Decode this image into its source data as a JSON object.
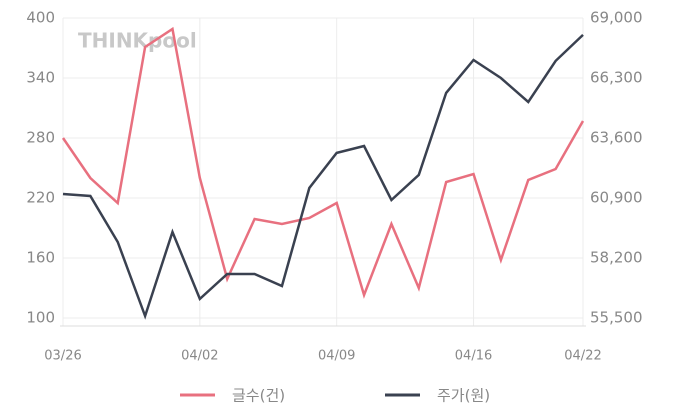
{
  "chart_data": {
    "type": "line",
    "watermark": "THINKpool",
    "categories": [
      "03/26",
      null,
      null,
      null,
      null,
      "04/02",
      null,
      null,
      null,
      null,
      "04/09",
      null,
      null,
      null,
      null,
      "04/16",
      null,
      null,
      null,
      "04/22"
    ],
    "series": [
      {
        "name": "글수(건)",
        "color": "#e8707f",
        "axis": "y",
        "values": [
          280,
          240,
          215,
          371,
          389,
          240,
          139,
          199,
          194,
          200,
          215,
          123,
          194,
          130,
          236,
          244,
          158,
          238,
          249,
          297
        ]
      },
      {
        "name": "주가(원)",
        "color": "#3a4150",
        "axis": "y2",
        "values": [
          61080,
          60990,
          58920,
          55590,
          59370,
          56360,
          57480,
          57480,
          56940,
          61350,
          62930,
          63240,
          60810,
          61940,
          65630,
          67110,
          66300,
          65220,
          67070,
          68240
        ]
      }
    ],
    "ylim": [
      100,
      400
    ],
    "yticks": [
      100,
      160,
      220,
      280,
      340,
      400
    ],
    "y2lim": [
      55500,
      69000
    ],
    "y2ticks": [
      {
        "value": 55500,
        "label": "55,500"
      },
      {
        "value": 58200,
        "label": "58,200"
      },
      {
        "value": 60900,
        "label": "60,900"
      },
      {
        "value": 63600,
        "label": "63,600"
      },
      {
        "value": 66300,
        "label": "66,300"
      },
      {
        "value": 69000,
        "label": "69,000"
      }
    ],
    "grid": true
  }
}
